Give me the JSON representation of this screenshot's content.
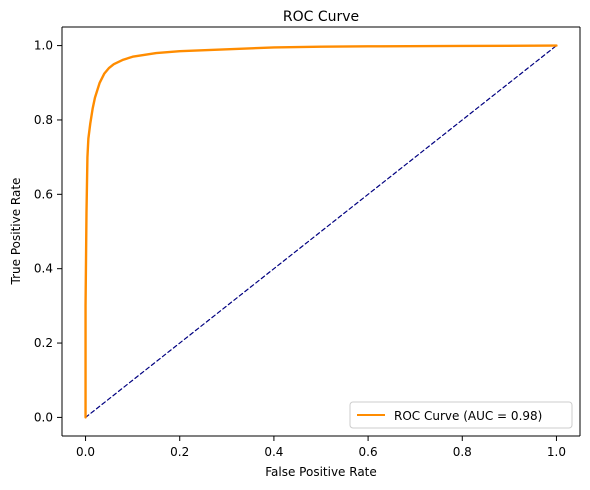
{
  "chart_data": {
    "type": "line",
    "title": "ROC Curve",
    "xlabel": "False Positive Rate",
    "ylabel": "True Positive Rate",
    "xlim": [
      -0.05,
      1.05
    ],
    "ylim": [
      -0.05,
      1.05
    ],
    "xticks": [
      0.0,
      0.2,
      0.4,
      0.6,
      0.8,
      1.0
    ],
    "yticks": [
      0.0,
      0.2,
      0.4,
      0.6,
      0.8,
      1.0
    ],
    "xtick_labels": [
      "0.0",
      "0.2",
      "0.4",
      "0.6",
      "0.8",
      "1.0"
    ],
    "ytick_labels": [
      "0.0",
      "0.2",
      "0.4",
      "0.6",
      "0.8",
      "1.0"
    ],
    "grid": false,
    "legend_position": "lower-right",
    "series": [
      {
        "name": "ROC Curve (AUC = 0.98)",
        "color": "#ff8c00",
        "line_style": "solid",
        "x": [
          0.0,
          0.0,
          0.002,
          0.004,
          0.006,
          0.01,
          0.015,
          0.02,
          0.03,
          0.04,
          0.05,
          0.06,
          0.08,
          0.1,
          0.15,
          0.2,
          0.3,
          0.4,
          0.5,
          0.6,
          0.8,
          1.0
        ],
        "y": [
          0.0,
          0.3,
          0.55,
          0.7,
          0.75,
          0.79,
          0.83,
          0.86,
          0.9,
          0.925,
          0.94,
          0.95,
          0.962,
          0.97,
          0.98,
          0.985,
          0.99,
          0.995,
          0.997,
          0.998,
          0.999,
          1.0
        ]
      },
      {
        "name": "",
        "color": "#000080",
        "line_style": "dashed",
        "x": [
          0.0,
          1.0
        ],
        "y": [
          0.0,
          1.0
        ]
      }
    ],
    "legend": {
      "entries": [
        {
          "label": "ROC Curve (AUC = 0.98)",
          "color": "#ff8c00"
        }
      ]
    }
  }
}
